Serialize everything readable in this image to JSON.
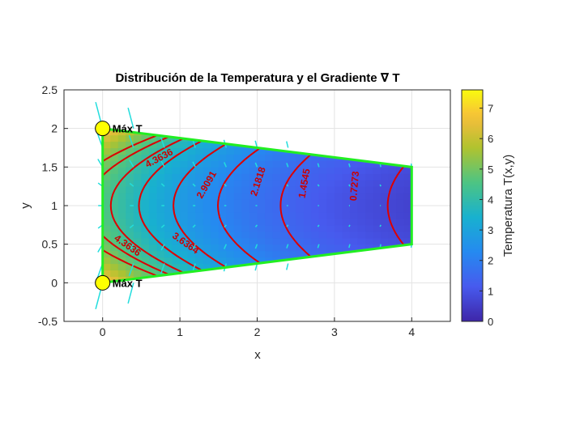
{
  "chart_data": {
    "type": "contour",
    "title": "Distribución de la Temperatura y el Gradiente ∇ T",
    "xlabel": "x",
    "ylabel": "y",
    "xlim": [
      -0.5,
      4.5
    ],
    "ylim": [
      -0.5,
      2.5
    ],
    "xticks": [
      0,
      1,
      2,
      3,
      4
    ],
    "yticks": [
      -0.5,
      0,
      0.5,
      1,
      1.5,
      2,
      2.5
    ],
    "xtick_labels": [
      "0",
      "1",
      "2",
      "3",
      "4"
    ],
    "ytick_labels": [
      "-0.5",
      "0",
      "0.5",
      "1",
      "1.5",
      "2",
      "2.5"
    ],
    "grid": true,
    "colorbar": {
      "label": "Temperatura T(x,y)",
      "range": [
        0,
        7.6
      ],
      "ticks": [
        0,
        1,
        2,
        3,
        4,
        5,
        6,
        7
      ],
      "tick_labels": [
        "0",
        "1",
        "2",
        "3",
        "4",
        "5",
        "6",
        "7"
      ],
      "colormap": "parula"
    },
    "domain_boundary": [
      [
        0,
        0
      ],
      [
        0,
        2
      ],
      [
        4,
        1.5
      ],
      [
        4,
        0.5
      ],
      [
        0,
        0
      ]
    ],
    "boundary_color": "#22ee22",
    "contour_color": "#dd0000",
    "quiver_color": "#22dddd",
    "contour_levels": [
      0.7273,
      1.4545,
      2.1818,
      2.9091,
      3.6364,
      4.3636,
      5.0909,
      5.8182
    ],
    "contour_labels": [
      {
        "text": "4.3636",
        "x": 0.75,
        "y": 1.58,
        "rot": -28
      },
      {
        "text": "2.9091",
        "x": 1.38,
        "y": 1.25,
        "rot": -60
      },
      {
        "text": "2.1818",
        "x": 2.05,
        "y": 1.3,
        "rot": -72
      },
      {
        "text": "1.4545",
        "x": 2.65,
        "y": 1.28,
        "rot": -80
      },
      {
        "text": "0.7273",
        "x": 3.3,
        "y": 1.25,
        "rot": -85
      },
      {
        "text": "4.3636",
        "x": 0.3,
        "y": 0.45,
        "rot": 35
      },
      {
        "text": "3.6364",
        "x": 1.05,
        "y": 0.48,
        "rot": 35
      }
    ],
    "points": [
      {
        "label": "Máx T",
        "x": 0,
        "y": 2,
        "color": "#ffff00"
      },
      {
        "label": "Máx T",
        "x": 0,
        "y": 0,
        "color": "#ffff00"
      }
    ]
  }
}
